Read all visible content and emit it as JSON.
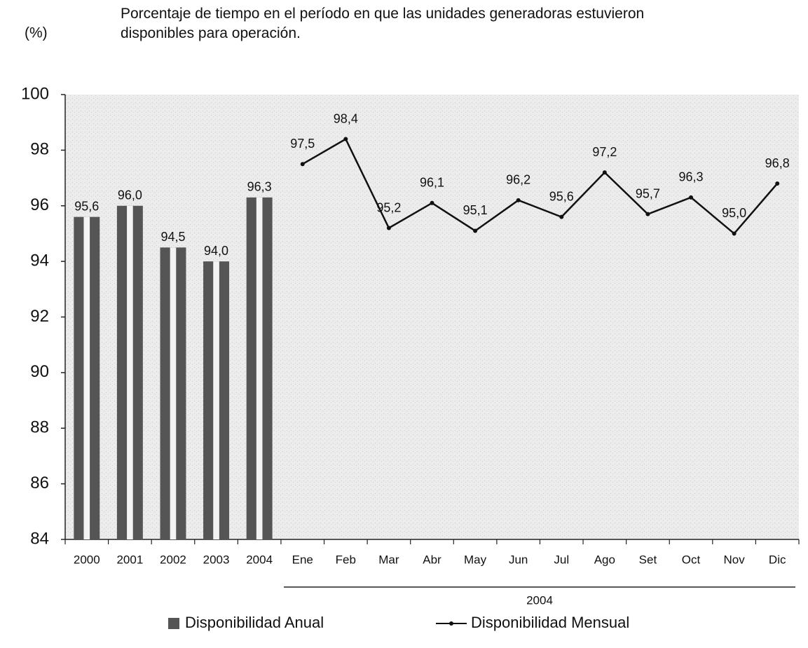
{
  "chart_data": {
    "type": "bar-line",
    "title": "Porcentaje de tiempo en el período en que las unidades generadoras estuvieron disponibles para operación.",
    "y_label": "(%)",
    "group_label": "2004",
    "categories": [
      "2000",
      "2001",
      "2002",
      "2003",
      "2004",
      "Ene",
      "Feb",
      "Mar",
      "Abr",
      "May",
      "Jun",
      "Jul",
      "Ago",
      "Set",
      "Oct",
      "Nov",
      "Dic"
    ],
    "series": [
      {
        "name": "Disponibilidad Anual",
        "type": "bar",
        "color": "#555555",
        "values": [
          95.6,
          96.0,
          94.5,
          94.0,
          96.3,
          null,
          null,
          null,
          null,
          null,
          null,
          null,
          null,
          null,
          null,
          null,
          null
        ],
        "value_labels": [
          "95,6",
          "96,0",
          "94,5",
          "94,0",
          "96,3",
          null,
          null,
          null,
          null,
          null,
          null,
          null,
          null,
          null,
          null,
          null,
          null
        ]
      },
      {
        "name": "Disponibilidad Mensual",
        "type": "line",
        "color": "#111111",
        "values": [
          null,
          null,
          null,
          null,
          null,
          97.5,
          98.4,
          95.2,
          96.1,
          95.1,
          96.2,
          95.6,
          97.2,
          95.7,
          96.3,
          95.0,
          96.8
        ],
        "value_labels": [
          null,
          null,
          null,
          null,
          null,
          "97,5",
          "98,4",
          "95,2",
          "96,1",
          "95,1",
          "96,2",
          "95,6",
          "97,2",
          "95,7",
          "96,3",
          "95,0",
          "96,8"
        ]
      }
    ],
    "ylim": [
      84,
      100
    ],
    "yticks": [
      84,
      86,
      88,
      90,
      92,
      94,
      96,
      98,
      100
    ],
    "grid": false,
    "legend": "bottom"
  }
}
